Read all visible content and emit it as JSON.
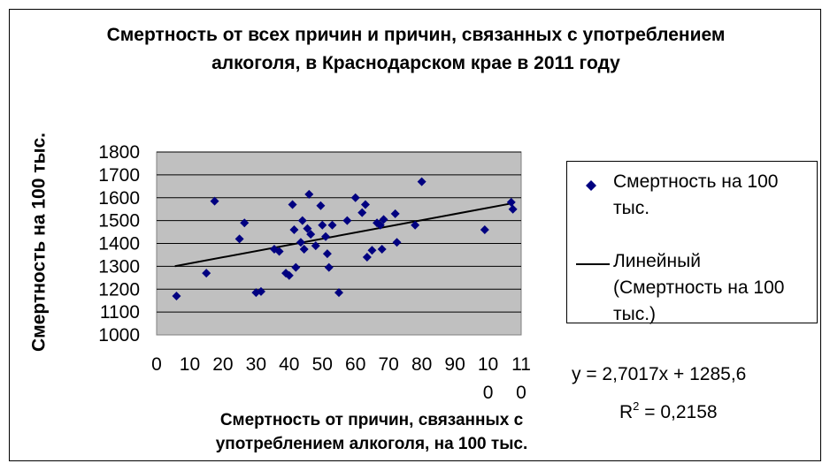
{
  "chart_data": {
    "type": "scatter",
    "title": "Смертность от всех причин и причин, связанных с употреблением алкоголя, в Краснодарском крае в 2011 году",
    "xlabel": "Смертность от причин, связанных с употреблением алкоголя, на 100 тыс.",
    "ylabel": "Смертность на 100 тыс.",
    "xlim": [
      0,
      110
    ],
    "ylim": [
      1000,
      1800
    ],
    "x_ticks": [
      "0",
      "10",
      "20",
      "30",
      "40",
      "50",
      "60",
      "70",
      "80",
      "90",
      "100",
      "110"
    ],
    "y_ticks": [
      "1800",
      "1700",
      "1600",
      "1500",
      "1400",
      "1300",
      "1200",
      "1100",
      "1000"
    ],
    "grid": "horizontal",
    "legend_position": "right",
    "series": [
      {
        "name": "Смертность на 100 тыс.",
        "marker": "diamond",
        "color": "#000080",
        "points": [
          [
            6,
            1170
          ],
          [
            15,
            1270
          ],
          [
            17.5,
            1585
          ],
          [
            25,
            1420
          ],
          [
            26.5,
            1490
          ],
          [
            30,
            1185
          ],
          [
            31.5,
            1190
          ],
          [
            35.5,
            1375
          ],
          [
            37,
            1365
          ],
          [
            39,
            1270
          ],
          [
            40,
            1260
          ],
          [
            41,
            1570
          ],
          [
            41.5,
            1460
          ],
          [
            42,
            1295
          ],
          [
            43.5,
            1405
          ],
          [
            44,
            1500
          ],
          [
            44.5,
            1375
          ],
          [
            45.5,
            1465
          ],
          [
            46,
            1615
          ],
          [
            46.5,
            1440
          ],
          [
            48,
            1390
          ],
          [
            49.5,
            1565
          ],
          [
            50,
            1480
          ],
          [
            51,
            1430
          ],
          [
            51.5,
            1355
          ],
          [
            52,
            1295
          ],
          [
            53,
            1480
          ],
          [
            55,
            1185
          ],
          [
            57.5,
            1500
          ],
          [
            60,
            1600
          ],
          [
            62,
            1535
          ],
          [
            63,
            1570
          ],
          [
            63.5,
            1340
          ],
          [
            65,
            1370
          ],
          [
            66.5,
            1490
          ],
          [
            67.5,
            1480
          ],
          [
            68,
            1375
          ],
          [
            68.5,
            1505
          ],
          [
            72,
            1530
          ],
          [
            72.5,
            1405
          ],
          [
            78,
            1480
          ],
          [
            80,
            1670
          ],
          [
            99,
            1460
          ],
          [
            107,
            1580
          ],
          [
            107.5,
            1550
          ]
        ]
      },
      {
        "name": "Линейный (Смертность на 100 тыс.)",
        "type": "trendline",
        "color": "#000000",
        "slope": 2.7017,
        "intercept": 1285.6,
        "x_range": [
          5.5,
          107.5
        ]
      }
    ],
    "annotations": {
      "equation": "y = 2,7017x + 1285,6",
      "r2_prefix": "R",
      "r2_exponent": "2",
      "r2_value": " = 0,2158"
    }
  },
  "colors": {
    "plot_background": "#c0c0c0",
    "marker": "#000080",
    "trendline": "#000000"
  }
}
